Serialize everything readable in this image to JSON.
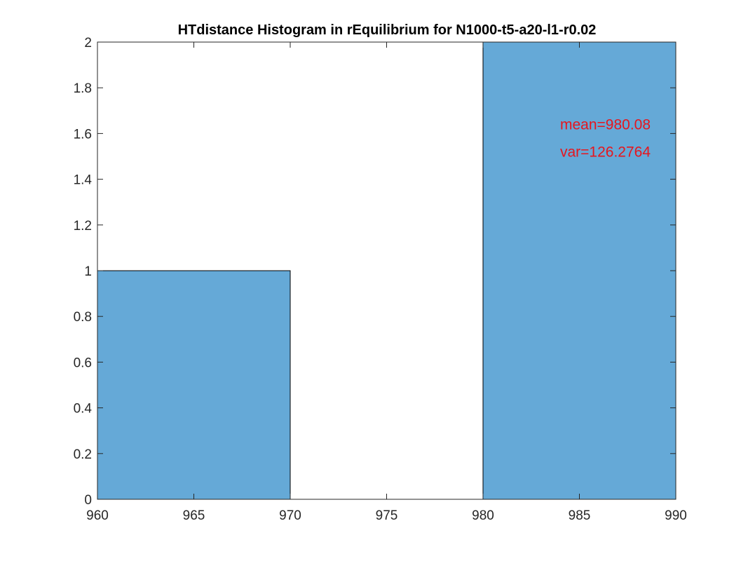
{
  "chart_data": {
    "type": "bar",
    "title": "HTdistance Histogram in rEquilibrium for N1000-t5-a20-l1-r0.02",
    "xlabel": "",
    "ylabel": "",
    "bins": [
      {
        "x0": 960,
        "x1": 970,
        "count": 1
      },
      {
        "x0": 970,
        "x1": 980,
        "count": 0
      },
      {
        "x0": 980,
        "x1": 990,
        "count": 2
      }
    ],
    "xlim": [
      960,
      990
    ],
    "ylim": [
      0,
      2
    ],
    "xticks": [
      960,
      965,
      970,
      975,
      980,
      985,
      990
    ],
    "xtick_labels": [
      "960",
      "965",
      "970",
      "975",
      "980",
      "985",
      "990"
    ],
    "yticks": [
      0,
      0.2,
      0.4,
      0.6,
      0.8,
      1,
      1.2,
      1.4,
      1.6,
      1.8,
      2
    ],
    "ytick_labels": [
      "0",
      "0.2",
      "0.4",
      "0.6",
      "0.8",
      "1",
      "1.2",
      "1.4",
      "1.6",
      "1.8",
      "2"
    ],
    "grid": false,
    "bar_color": "#65A9D7",
    "annotations": [
      {
        "text": "mean=980.08",
        "x": 984,
        "y": 1.64
      },
      {
        "text": "var=126.2764",
        "x": 984,
        "y": 1.52
      }
    ],
    "annotation_color": "#E6161E"
  }
}
